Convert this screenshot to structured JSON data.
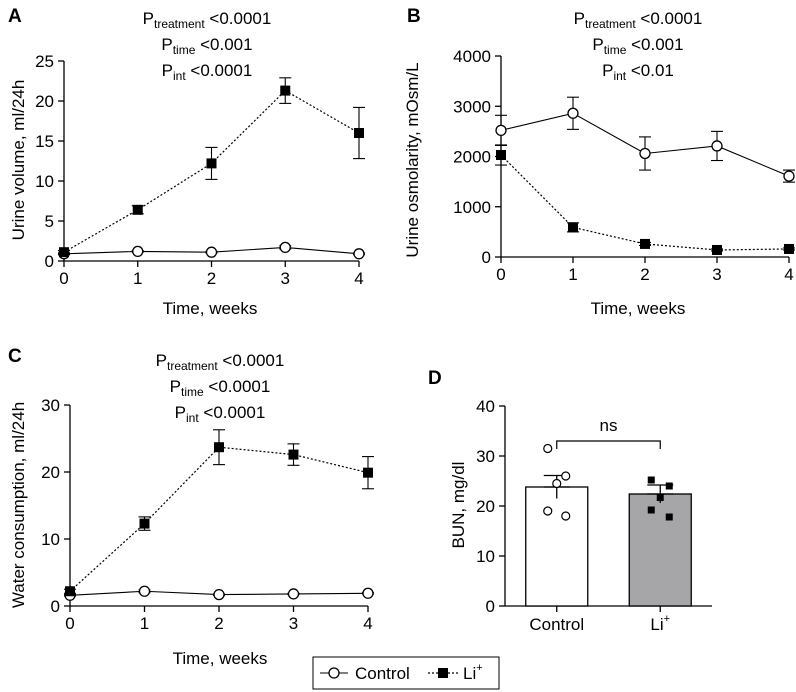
{
  "figure_legend": {
    "entries": [
      {
        "name": "Control",
        "marker": "open-circle",
        "line": "solid"
      },
      {
        "name": "Li",
        "superscript": "+",
        "marker": "filled-square",
        "line": "dashed"
      }
    ]
  },
  "chart_data": [
    {
      "id": "A",
      "panel_label": "A",
      "type": "line",
      "xlabel": "Time, weeks",
      "ylabel": "Urine volume, ml/24h",
      "xlim": [
        0,
        4
      ],
      "ylim": [
        0,
        25
      ],
      "xticks": [
        0,
        1,
        2,
        3,
        4
      ],
      "yticks": [
        0,
        5,
        10,
        15,
        20,
        25
      ],
      "stats": [
        {
          "p": "P",
          "sub": "treatment",
          "text": "<0.0001"
        },
        {
          "p": "P",
          "sub": "time",
          "text": "<0.001"
        },
        {
          "p": "P",
          "sub": "int",
          "text": "<0.0001"
        }
      ],
      "x": [
        0,
        1,
        2,
        3,
        4
      ],
      "series": [
        {
          "name": "Control",
          "values": [
            0.9,
            1.2,
            1.1,
            1.7,
            0.9
          ],
          "errors": [
            0.1,
            0.1,
            0.1,
            0.2,
            0.1
          ]
        },
        {
          "name": "Li+",
          "values": [
            1.1,
            6.4,
            12.2,
            21.3,
            16.0
          ],
          "errors": [
            0.2,
            0.5,
            2.0,
            1.6,
            3.2
          ]
        }
      ]
    },
    {
      "id": "B",
      "panel_label": "B",
      "type": "line",
      "xlabel": "Time, weeks",
      "ylabel": "Urine osmolarity, mOsm/L",
      "xlim": [
        0,
        4
      ],
      "ylim": [
        0,
        4000
      ],
      "xticks": [
        0,
        1,
        2,
        3,
        4
      ],
      "yticks": [
        0,
        1000,
        2000,
        3000,
        4000
      ],
      "stats": [
        {
          "p": "P",
          "sub": "treatment",
          "text": "<0.0001"
        },
        {
          "p": "P",
          "sub": "time",
          "text": "<0.001"
        },
        {
          "p": "P",
          "sub": "int",
          "text": "<0.01"
        }
      ],
      "x": [
        0,
        1,
        2,
        3,
        4
      ],
      "series": [
        {
          "name": "Control",
          "values": [
            2520,
            2860,
            2060,
            2210,
            1610
          ],
          "errors": [
            300,
            320,
            330,
            290,
            120
          ]
        },
        {
          "name": "Li+",
          "values": [
            2030,
            590,
            260,
            140,
            160
          ],
          "errors": [
            200,
            90,
            30,
            20,
            20
          ]
        }
      ]
    },
    {
      "id": "C",
      "panel_label": "C",
      "type": "line",
      "xlabel": "Time, weeks",
      "ylabel": "Water consumption, ml/24h",
      "xlim": [
        0,
        4
      ],
      "ylim": [
        0,
        30
      ],
      "xticks": [
        0,
        1,
        2,
        3,
        4
      ],
      "yticks": [
        0,
        10,
        20,
        30
      ],
      "stats": [
        {
          "p": "P",
          "sub": "treatment",
          "text": "<0.0001"
        },
        {
          "p": "P",
          "sub": "time",
          "text": "<0.0001"
        },
        {
          "p": "P",
          "sub": "int",
          "text": "<0.0001"
        }
      ],
      "x": [
        0,
        1,
        2,
        3,
        4
      ],
      "series": [
        {
          "name": "Control",
          "values": [
            1.6,
            2.2,
            1.7,
            1.8,
            1.9
          ],
          "errors": [
            0.1,
            0.2,
            0.1,
            0.1,
            0.1
          ]
        },
        {
          "name": "Li+",
          "values": [
            2.2,
            12.3,
            23.7,
            22.6,
            19.9
          ],
          "errors": [
            0.3,
            1.0,
            2.6,
            1.6,
            2.4
          ]
        }
      ]
    },
    {
      "id": "D",
      "panel_label": "D",
      "type": "bar",
      "xlabel": "",
      "ylabel": "BUN, mg/dl",
      "ylim": [
        0,
        40
      ],
      "yticks": [
        0,
        10,
        20,
        30,
        40
      ],
      "categories": [
        "Control",
        "Li"
      ],
      "category_superscripts": [
        "",
        "+"
      ],
      "values": [
        23.8,
        22.4
      ],
      "errors": [
        2.3,
        1.8
      ],
      "bar_colors": [
        "#ffffff",
        "#a6a6a8"
      ],
      "points": [
        [
          31.5,
          26.0,
          24.5,
          19.0,
          18.0
        ],
        [
          25.2,
          24.0,
          21.7,
          19.2,
          17.8
        ]
      ],
      "comparison": {
        "label": "ns",
        "pair": [
          0,
          1
        ],
        "height": 33
      }
    }
  ]
}
